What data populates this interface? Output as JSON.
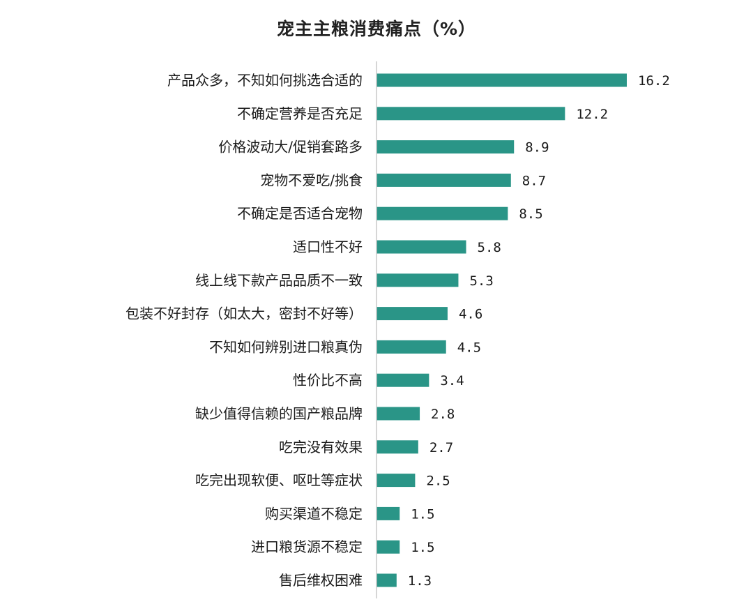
{
  "chart_data": {
    "type": "bar",
    "orientation": "horizontal",
    "title": "宠主主粮消费痛点（%）",
    "categories": [
      "产品众多，不知如何挑选合适的",
      "不确定营养是否充足",
      "价格波动大/促销套路多",
      "宠物不爱吃/挑食",
      "不确定是否适合宠物",
      "适口性不好",
      "线上线下款产品品质不一致",
      "包装不好封存（如太大，密封不好等）",
      "不知如何辨别进口粮真伪",
      "性价比不高",
      "缺少值得信赖的国产粮品牌",
      "吃完没有效果",
      "吃完出现软便、呕吐等症状",
      "购买渠道不稳定",
      "进口粮货源不稳定",
      "售后维权困难"
    ],
    "values": [
      16.2,
      12.2,
      8.9,
      8.7,
      8.5,
      5.8,
      5.3,
      4.6,
      4.5,
      3.4,
      2.8,
      2.7,
      2.5,
      1.5,
      1.5,
      1.3
    ],
    "value_labels": [
      "16.2",
      "12.2",
      "8.9",
      "8.7",
      "8.5",
      "5.8",
      "5.3",
      "4.6",
      "4.5",
      "3.4",
      "2.8",
      "2.7",
      "2.5",
      "1.5",
      "1.5",
      "1.3"
    ],
    "xlim": [
      0,
      16.2
    ],
    "grid": false,
    "legend": "none",
    "colors": {
      "bar": "#2a9587",
      "axis": "#c8c8c8",
      "text": "#1a1a1a"
    }
  }
}
